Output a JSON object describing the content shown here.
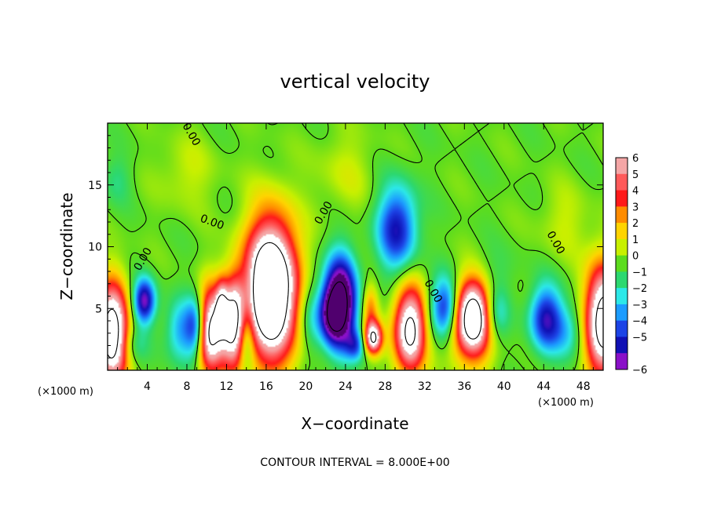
{
  "chart_data": {
    "type": "heatmap",
    "title": "vertical velocity",
    "xlabel": "X−coordinate",
    "ylabel": "Z−coordinate",
    "x_unit": "(×1000 m)",
    "x_unit_repeat": "(×1000 m)",
    "footer": "CONTOUR INTERVAL = 8.000E+00",
    "xlim": [
      0,
      50
    ],
    "ylim": [
      0,
      20
    ],
    "x_ticks": [
      4,
      8,
      12,
      16,
      20,
      24,
      28,
      32,
      36,
      40,
      44,
      48
    ],
    "x_tick_labels": [
      "4",
      "8",
      "12",
      "16",
      "20",
      "24",
      "28",
      "32",
      "36",
      "40",
      "44",
      "48"
    ],
    "y_ticks": [
      5,
      10,
      15
    ],
    "y_tick_labels": [
      "5",
      "10",
      "15"
    ],
    "colorbar": {
      "levels": [
        6,
        5,
        4,
        3,
        2,
        1,
        0,
        -1,
        -2,
        -3,
        -4,
        -5,
        -6
      ],
      "labels": [
        "6",
        "5",
        "4",
        "3",
        "2",
        "1",
        "0",
        "−1",
        "−2",
        "−3",
        "−4",
        "−5",
        "−6"
      ],
      "colors": [
        "#f4a6a6",
        "#ff5a5a",
        "#ff1a1a",
        "#ff8c00",
        "#ffd400",
        "#c8f000",
        "#5cdc1e",
        "#2cd870",
        "#2ce8e8",
        "#1c9cff",
        "#1c44e6",
        "#1010b4",
        "#8a10c8"
      ],
      "background_color": "#5ed82a"
    },
    "contour_labels": [
      "0.00",
      "0.00",
      "0.00",
      "0.00",
      "0.00",
      "0.00"
    ],
    "features": [
      {
        "x": 16.5,
        "z": 6.5,
        "w": 13,
        "rx": 2.6,
        "rz": 5.5
      },
      {
        "x": 36.8,
        "z": 4.3,
        "w": 11,
        "rx": 2.2,
        "rz": 3.2
      },
      {
        "x": 30.5,
        "z": 3.3,
        "w": 9,
        "rx": 1.6,
        "rz": 3.5
      },
      {
        "x": 0.5,
        "z": 3.0,
        "w": 10,
        "rx": 1.6,
        "rz": 4.0
      },
      {
        "x": 50,
        "z": 4.0,
        "w": 10,
        "rx": 1.8,
        "rz": 4.5
      },
      {
        "x": 10.3,
        "z": 3.2,
        "w": 9,
        "rx": 1.5,
        "rz": 3.4
      },
      {
        "x": 12.7,
        "z": 3.8,
        "w": 8,
        "rx": 1.2,
        "rz": 3.6
      },
      {
        "x": 11.5,
        "z": 5.2,
        "w": 4,
        "rx": 0.6,
        "rz": 2.0
      },
      {
        "x": 26.5,
        "z": 5.0,
        "w": 3,
        "rx": 0.8,
        "rz": 2.0
      },
      {
        "x": 26.8,
        "z": 2.6,
        "w": 8,
        "rx": 0.9,
        "rz": 1.3
      },
      {
        "x": 23.5,
        "z": 5.5,
        "w": -9,
        "rx": 1.6,
        "rz": 3.6
      },
      {
        "x": 22.5,
        "z": 4.5,
        "w": -4,
        "rx": 1.2,
        "rz": 2.2
      },
      {
        "x": 29.2,
        "z": 11.5,
        "w": -5,
        "rx": 2.0,
        "rz": 3.4
      },
      {
        "x": 3.7,
        "z": 5.6,
        "w": -6,
        "rx": 1.1,
        "rz": 1.8
      },
      {
        "x": 7.5,
        "z": 3.2,
        "w": -3,
        "rx": 1.6,
        "rz": 2.5
      },
      {
        "x": 9.0,
        "z": 3.5,
        "w": -5,
        "rx": 1.0,
        "rz": 2.6
      },
      {
        "x": 14.0,
        "z": 3.0,
        "w": -3,
        "rx": 0.8,
        "rz": 3.0
      },
      {
        "x": 34.2,
        "z": 5.0,
        "w": -6,
        "rx": 1.6,
        "rz": 2.4
      },
      {
        "x": 39.0,
        "z": 4.5,
        "w": -4,
        "rx": 1.4,
        "rz": 2.4
      },
      {
        "x": 44.2,
        "z": 4.2,
        "w": -5,
        "rx": 1.6,
        "rz": 2.6
      },
      {
        "x": 46.5,
        "z": 3.2,
        "w": -2,
        "rx": 1.8,
        "rz": 2.2
      },
      {
        "x": 20.5,
        "z": 4.5,
        "w": -2,
        "rx": 1.2,
        "rz": 3.0
      },
      {
        "x": 25.0,
        "z": 2.0,
        "w": -3,
        "rx": 1.0,
        "rz": 1.2
      },
      {
        "x": 2.5,
        "z": 2.0,
        "w": -1.5,
        "rx": 1.5,
        "rz": 1.5
      },
      {
        "x": 1.0,
        "z": 15.5,
        "w": -1,
        "rx": 1.5,
        "rz": 2.0
      },
      {
        "x": 24.0,
        "z": 16.0,
        "w": 1,
        "rx": 3.0,
        "rz": 3.5
      },
      {
        "x": 8.0,
        "z": 16.0,
        "w": 1,
        "rx": 3.0,
        "rz": 3.0
      },
      {
        "x": 46.0,
        "z": 12.0,
        "w": 1,
        "rx": 2.5,
        "rz": 3.0
      },
      {
        "x": 38.0,
        "z": 8.0,
        "w": -1,
        "rx": 3.0,
        "rz": 2.0
      }
    ]
  }
}
